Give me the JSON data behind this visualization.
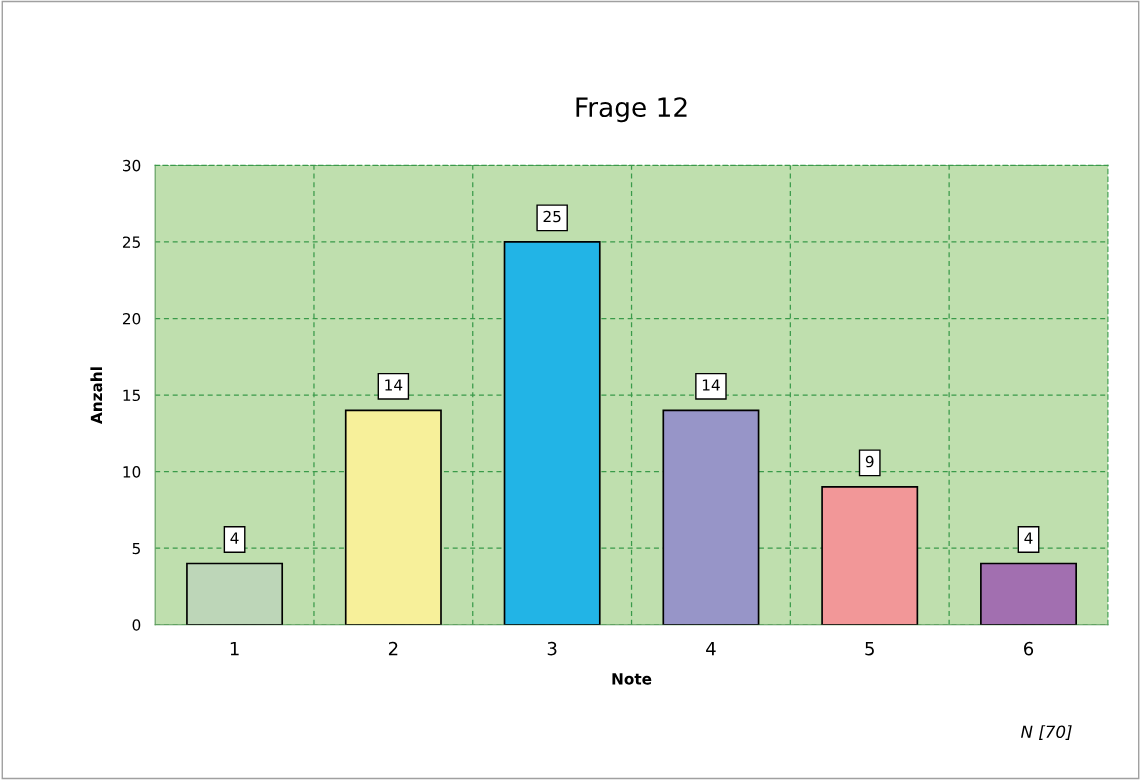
{
  "chart_data": {
    "type": "bar",
    "title": "Frage 12",
    "xlabel": "Note",
    "ylabel": "Anzahl",
    "categories": [
      "1",
      "2",
      "3",
      "4",
      "5",
      "6"
    ],
    "values": [
      4,
      14,
      25,
      14,
      9,
      4
    ],
    "colors": [
      "#bdd6b8",
      "#f7f09a",
      "#22b4e6",
      "#9795c8",
      "#f29798",
      "#a26fb0"
    ],
    "ylim": [
      0,
      30
    ],
    "yticks": [
      0,
      5,
      10,
      15,
      20,
      25,
      30
    ],
    "grid": true,
    "data_labels": true,
    "annotations": [
      "N [70]"
    ]
  }
}
